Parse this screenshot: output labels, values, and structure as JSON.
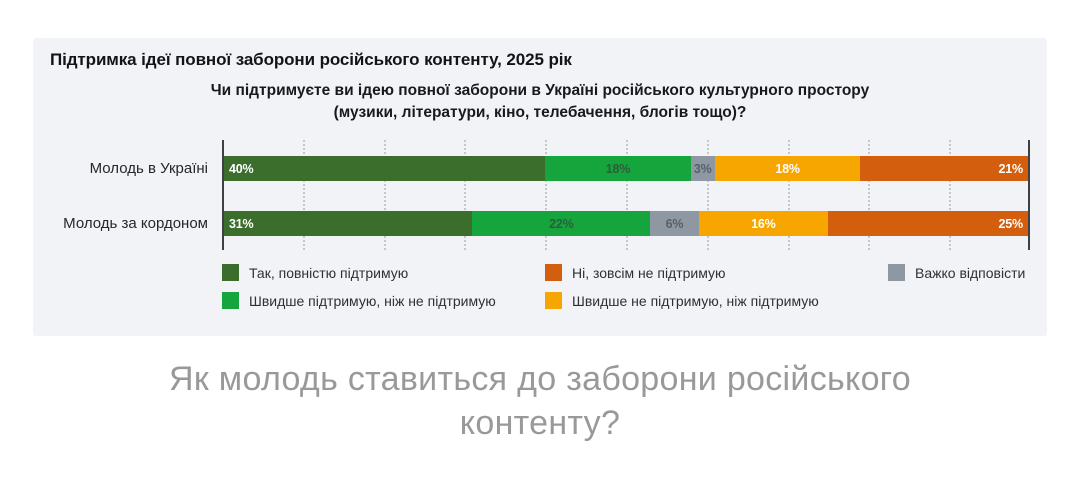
{
  "card": {
    "title": "Підтримка ідеї повної заборони російського контенту, 2025 рік",
    "question_lines": [
      "Чи підтримуєте ви ідею повної заборони в Україні російського культурного простору",
      "(музики, літератури, кіно, телебачення, блогів тощо)?"
    ]
  },
  "page": {
    "caption": "Як молодь ставиться до заборони російського контенту?"
  },
  "colors": {
    "page_bg": "#ffffff",
    "card_bg": "#f1f3f6",
    "axis": "#3c4146",
    "gridline": "#c3c8ce",
    "title_text": "#121417",
    "question_text": "#17191c",
    "category_text": "#24272b",
    "legend_text": "#2d3136",
    "caption_text": "#98999b"
  },
  "chart_data": {
    "type": "bar",
    "orientation": "horizontal",
    "stacked": true,
    "value_unit": "%",
    "xlim": [
      0,
      100
    ],
    "gridline_step_pct": 10,
    "grid_style": "dotted-vertical",
    "legend_position": "bottom",
    "categories": [
      "Молодь в Україні",
      "Молодь за кордоном"
    ],
    "series": [
      {
        "name": "Так, повністю підтримую",
        "color": "#3b6d2c",
        "values": [
          40,
          31
        ],
        "value_label": {
          "color": "#ffffff",
          "align": "start"
        }
      },
      {
        "name": "Швидше підтримую, ніж не підтримую",
        "color": "#16a53d",
        "values": [
          18,
          22
        ],
        "value_label": {
          "color": "#2b5e3b",
          "align": "center"
        }
      },
      {
        "name": "Важко відповісти",
        "color": "#8e98a2",
        "values": [
          3,
          6
        ],
        "value_label": {
          "color": "#566069",
          "align": "center"
        }
      },
      {
        "name": "Швидше не підтримую, ніж підтримую",
        "color": "#f7a600",
        "values": [
          18,
          16
        ],
        "value_label": {
          "color": "#ffffff",
          "align": "center"
        }
      },
      {
        "name": "Ні, зовсім не підтримую",
        "color": "#d35f0e",
        "values": [
          21,
          25
        ],
        "value_label": {
          "color": "#ffffff",
          "align": "end"
        }
      }
    ]
  },
  "legend": {
    "columns": [
      [
        0,
        1
      ],
      [
        4,
        3
      ],
      [
        2
      ]
    ]
  }
}
